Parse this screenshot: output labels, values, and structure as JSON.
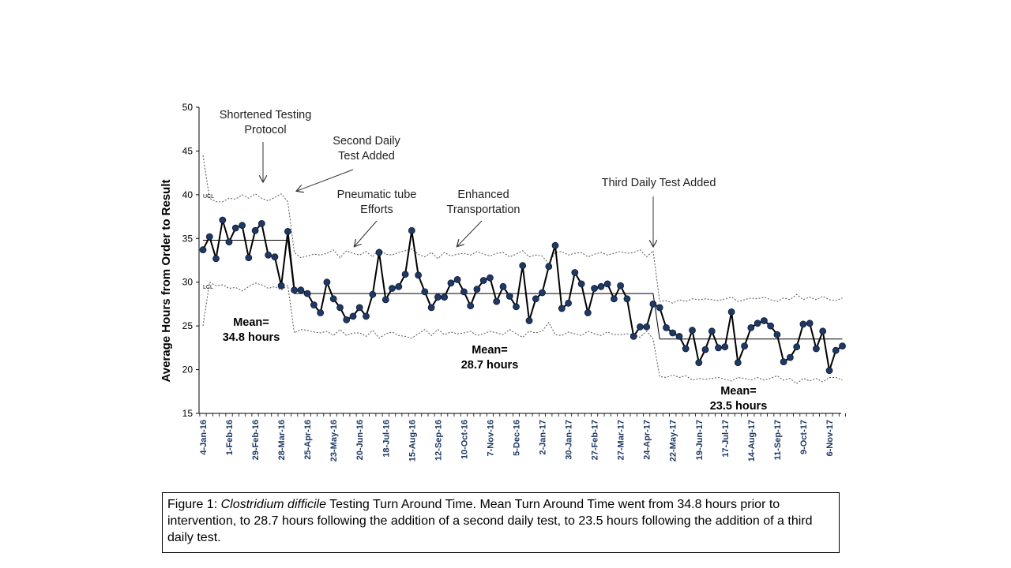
{
  "chart_data": {
    "type": "line",
    "ylabel": "Average Hours from Order to Result",
    "xlabel": "",
    "ylim": [
      15,
      50
    ],
    "y_ticks": [
      "15",
      "20",
      "25",
      "30",
      "35",
      "40",
      "45",
      "50"
    ],
    "x_tick_labels": [
      "4-Jan-16",
      "1-Feb-16",
      "29-Feb-16",
      "28-Mar-16",
      "25-Apr-16",
      "23-May-16",
      "20-Jun-16",
      "18-Jul-16",
      "15-Aug-16",
      "12-Sep-16",
      "10-Oct-16",
      "7-Nov-16",
      "5-Dec-16",
      "2-Jan-17",
      "30-Jan-17",
      "27-Feb-17",
      "27-Mar-17",
      "24-Apr-17",
      "22-May-17",
      "19-Jun-17",
      "17-Jul-17",
      "14-Aug-17",
      "11-Sep-17",
      "9-Oct-17",
      "6-Nov-17"
    ],
    "grid": false,
    "series": [
      {
        "values": [
          33.7,
          35.2,
          32.7,
          37.1,
          34.6,
          36.2,
          36.5,
          32.8,
          35.9,
          36.7,
          33.1,
          32.9,
          29.6,
          35.8,
          29.1,
          29.1,
          28.7,
          27.4,
          26.5,
          30.0,
          28.1,
          27.1,
          25.7,
          26.1,
          27.1,
          26.1,
          28.6,
          33.4,
          28.0,
          29.3,
          29.5,
          30.9,
          35.9,
          30.8,
          28.9,
          27.1,
          28.3,
          28.3,
          29.9,
          30.3,
          28.9,
          27.3,
          29.2,
          30.2,
          30.5,
          27.8,
          29.5,
          28.4,
          27.2,
          31.9,
          25.6,
          28.1,
          28.8,
          31.8,
          34.2,
          27.0,
          27.6,
          31.1,
          29.8,
          26.5,
          29.3,
          29.5,
          29.8,
          28.1,
          29.6,
          28.1,
          23.8,
          24.9,
          24.9,
          27.5,
          27.1,
          24.8,
          24.2,
          23.8,
          22.4,
          24.5,
          20.8,
          22.3,
          24.4,
          22.5,
          22.6,
          26.6,
          20.8,
          22.7,
          24.8,
          25.3,
          25.6,
          25.0,
          24.0,
          20.9,
          21.4,
          22.6,
          25.2,
          25.3,
          22.4,
          24.4,
          19.9,
          22.2,
          22.7
        ]
      },
      {
        "values": [
          44.5,
          39.6,
          39.2,
          39.2,
          39.6,
          39.5,
          40.0,
          39.6,
          40.1,
          39.6,
          39.3,
          39.7,
          40.1,
          39.2,
          33.4,
          32.8,
          33.0,
          33.2,
          33.1,
          33.3,
          33.7,
          32.8,
          33.6,
          33.3,
          33.1,
          33.5,
          32.9,
          33.8,
          33.2,
          33.1,
          33.4,
          33.6,
          33.8,
          33.2,
          32.9,
          33.4,
          32.7,
          33.4,
          33.0,
          33.2,
          33.3,
          33.1,
          33.5,
          33.2,
          33.0,
          33.3,
          33.4,
          32.9,
          33.2,
          33.6,
          32.9,
          33.1,
          33.0,
          32.1,
          33.4,
          33.5,
          33.1,
          33.3,
          33.4,
          32.9,
          33.2,
          33.4,
          33.1,
          33.3,
          33.5,
          33.3,
          33.4,
          33.7,
          32.9,
          33.6,
          27.8,
          27.9,
          27.6,
          28.0,
          27.8,
          28.1,
          28.0,
          28.1,
          28.0,
          27.9,
          28.1,
          28.3,
          27.8,
          28.0,
          28.2,
          28.1,
          28.3,
          28.0,
          27.8,
          28.2,
          28.0,
          28.6,
          28.0,
          28.3,
          28.0,
          28.4,
          28.0,
          27.9,
          28.2
        ]
      },
      {
        "values": [
          25.0,
          30.0,
          29.6,
          29.7,
          29.3,
          29.4,
          29.0,
          29.5,
          29.9,
          29.7,
          29.3,
          29.5,
          29.1,
          29.6,
          24.2,
          24.6,
          24.5,
          24.3,
          24.2,
          24.4,
          23.9,
          24.6,
          23.9,
          24.2,
          24.2,
          23.8,
          24.5,
          23.6,
          24.1,
          24.3,
          23.9,
          23.8,
          23.6,
          24.1,
          24.6,
          23.9,
          24.6,
          24.0,
          24.3,
          24.1,
          24.2,
          24.4,
          23.9,
          24.1,
          24.4,
          24.2,
          24.0,
          24.6,
          24.1,
          23.7,
          24.4,
          24.2,
          24.4,
          25.4,
          24.0,
          23.9,
          24.3,
          24.1,
          23.9,
          24.4,
          24.1,
          23.9,
          24.3,
          24.0,
          24.0,
          24.1,
          24.0,
          23.7,
          24.4,
          23.5,
          19.2,
          19.1,
          19.4,
          19.1,
          19.3,
          18.8,
          19.0,
          18.9,
          19.0,
          19.1,
          18.9,
          18.7,
          19.1,
          19.0,
          18.8,
          19.1,
          18.8,
          19.0,
          19.3,
          18.8,
          19.0,
          18.4,
          19.0,
          18.7,
          19.0,
          18.6,
          19.1,
          19.1,
          18.8
        ]
      },
      {
        "values": [
          34.8,
          34.8,
          34.8,
          34.8,
          34.8,
          34.8,
          34.8,
          34.8,
          34.8,
          34.8,
          34.8,
          34.8,
          34.8,
          34.8,
          28.7,
          28.7,
          28.7,
          28.7,
          28.7,
          28.7,
          28.7,
          28.7,
          28.7,
          28.7,
          28.7,
          28.7,
          28.7,
          28.7,
          28.7,
          28.7,
          28.7,
          28.7,
          28.7,
          28.7,
          28.7,
          28.7,
          28.7,
          28.7,
          28.7,
          28.7,
          28.7,
          28.7,
          28.7,
          28.7,
          28.7,
          28.7,
          28.7,
          28.7,
          28.7,
          28.7,
          28.7,
          28.7,
          28.7,
          28.7,
          28.7,
          28.7,
          28.7,
          28.7,
          28.7,
          28.7,
          28.7,
          28.7,
          28.7,
          28.7,
          28.7,
          28.7,
          28.7,
          28.7,
          28.7,
          28.7,
          23.5,
          23.5,
          23.5,
          23.5,
          23.5,
          23.5,
          23.5,
          23.5,
          23.5,
          23.5,
          23.5,
          23.5,
          23.5,
          23.5,
          23.5,
          23.5,
          23.5,
          23.5,
          23.5,
          23.5,
          23.5,
          23.5,
          23.5,
          23.5,
          23.5,
          23.5,
          23.5,
          23.5,
          23.5
        ]
      }
    ],
    "limit_labels": {
      "ucl": "UCL",
      "lcl": "LCL"
    },
    "annotations": [
      {
        "lines": [
          "Shortened Testing",
          "Protocol"
        ],
        "target_index": 10
      },
      {
        "lines": [
          "Second Daily",
          "Test Added"
        ],
        "target_index": 14
      },
      {
        "lines": [
          "Pneumatic tube",
          "Efforts"
        ],
        "target_index": 24
      },
      {
        "lines": [
          "Enhanced",
          "Transportation"
        ],
        "target_index": 40
      },
      {
        "lines": [
          "Third Daily Test Added"
        ],
        "target_index": 70
      }
    ],
    "mean_labels": [
      {
        "lines": [
          "Mean=",
          "34.8 hours"
        ]
      },
      {
        "lines": [
          "Mean=",
          "28.7 hours"
        ]
      },
      {
        "lines": [
          "Mean=",
          "23.5 hours"
        ]
      }
    ],
    "colors": {
      "points": "#1f3864",
      "line": "#000000",
      "limits": "#555555",
      "xtick": "#1f3864"
    }
  },
  "caption": {
    "prefix": "Figure 1: ",
    "italic": "Clostridium difficile",
    "text": " Testing Turn Around Time. Mean Turn Around Time went from 34.8 hours prior to intervention, to 28.7 hours following the addition of a second daily test, to 23.5 hours following the addition of a third daily test."
  }
}
